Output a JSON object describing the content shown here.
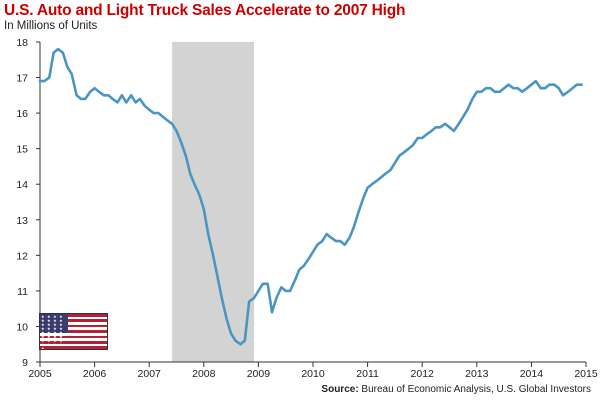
{
  "colors": {
    "title": "#cc0000",
    "line": "#4a95c1",
    "recession": "#d3d3d3",
    "axis": "#333333",
    "flag_red": "#b22234",
    "flag_blue": "#3c3b6e"
  },
  "chart_data": {
    "type": "line",
    "title": "U.S. Auto and Light Truck Sales Accelerate to 2007 High",
    "subtitle": "In Millions of Units",
    "xlabel": "",
    "ylabel": "",
    "xlim": [
      2005,
      2015
    ],
    "ylim": [
      9,
      18
    ],
    "x_ticks": [
      2005,
      2006,
      2007,
      2008,
      2009,
      2010,
      2011,
      2012,
      2013,
      2014,
      2015
    ],
    "y_ticks": [
      9,
      10,
      11,
      12,
      13,
      14,
      15,
      16,
      17,
      18
    ],
    "recession_band": [
      2007.42,
      2008.92
    ],
    "series": [
      {
        "name": "U.S. Auto and Light Truck Sales",
        "x": [
          2005.0,
          2005.08,
          2005.17,
          2005.25,
          2005.33,
          2005.42,
          2005.5,
          2005.58,
          2005.67,
          2005.75,
          2005.83,
          2005.92,
          2006.0,
          2006.08,
          2006.17,
          2006.25,
          2006.33,
          2006.42,
          2006.5,
          2006.58,
          2006.67,
          2006.75,
          2006.83,
          2006.92,
          2007.0,
          2007.08,
          2007.17,
          2007.25,
          2007.33,
          2007.42,
          2007.5,
          2007.58,
          2007.67,
          2007.75,
          2007.83,
          2007.92,
          2008.0,
          2008.08,
          2008.17,
          2008.25,
          2008.33,
          2008.42,
          2008.5,
          2008.58,
          2008.67,
          2008.75,
          2008.83,
          2008.92,
          2009.0,
          2009.08,
          2009.17,
          2009.25,
          2009.33,
          2009.42,
          2009.5,
          2009.58,
          2009.67,
          2009.75,
          2009.83,
          2009.92,
          2010.0,
          2010.08,
          2010.17,
          2010.25,
          2010.33,
          2010.42,
          2010.5,
          2010.58,
          2010.67,
          2010.75,
          2010.83,
          2010.92,
          2011.0,
          2011.08,
          2011.17,
          2011.25,
          2011.33,
          2011.42,
          2011.5,
          2011.58,
          2011.67,
          2011.75,
          2011.83,
          2011.92,
          2012.0,
          2012.08,
          2012.17,
          2012.25,
          2012.33,
          2012.42,
          2012.5,
          2012.58,
          2012.67,
          2012.75,
          2012.83,
          2012.92,
          2013.0,
          2013.08,
          2013.17,
          2013.25,
          2013.33,
          2013.42,
          2013.5,
          2013.58,
          2013.67,
          2013.75,
          2013.83,
          2013.92,
          2014.0,
          2014.08,
          2014.17,
          2014.25,
          2014.33,
          2014.42,
          2014.5,
          2014.58,
          2014.67,
          2014.75,
          2014.83,
          2014.92
        ],
        "values": [
          16.9,
          16.9,
          17.0,
          17.7,
          17.8,
          17.7,
          17.3,
          17.1,
          16.5,
          16.4,
          16.4,
          16.6,
          16.7,
          16.6,
          16.5,
          16.5,
          16.4,
          16.3,
          16.5,
          16.3,
          16.5,
          16.3,
          16.4,
          16.2,
          16.1,
          16.0,
          16.0,
          15.9,
          15.8,
          15.7,
          15.5,
          15.2,
          14.8,
          14.3,
          14.0,
          13.7,
          13.3,
          12.6,
          12.0,
          11.4,
          10.8,
          10.2,
          9.8,
          9.6,
          9.5,
          9.6,
          10.7,
          10.8,
          11.0,
          11.2,
          11.2,
          10.4,
          10.8,
          11.1,
          11.0,
          11.0,
          11.3,
          11.6,
          11.7,
          11.9,
          12.1,
          12.3,
          12.4,
          12.6,
          12.5,
          12.4,
          12.4,
          12.3,
          12.5,
          12.8,
          13.2,
          13.6,
          13.9,
          14.0,
          14.1,
          14.2,
          14.3,
          14.4,
          14.6,
          14.8,
          14.9,
          15.0,
          15.1,
          15.3,
          15.3,
          15.4,
          15.5,
          15.6,
          15.6,
          15.7,
          15.6,
          15.5,
          15.7,
          15.9,
          16.1,
          16.4,
          16.6,
          16.6,
          16.7,
          16.7,
          16.6,
          16.6,
          16.7,
          16.8,
          16.7,
          16.7,
          16.6,
          16.7,
          16.8,
          16.9,
          16.7,
          16.7,
          16.8,
          16.8,
          16.7,
          16.5,
          16.6,
          16.7,
          16.8,
          16.8
        ]
      }
    ]
  },
  "source": {
    "label": "Source:",
    "text": " Bureau of Economic Analysis, U.S. Global Investors"
  },
  "flag": {
    "stars": "★ ★ ★ ★ ★ ★ ★ ★ ★ ★ ★ ★ ★ ★ ★ ★ ★ ★ ★ ★ ★ ★ ★ ★ ★ ★ ★ ★ ★ ★ ★ ★ ★"
  }
}
